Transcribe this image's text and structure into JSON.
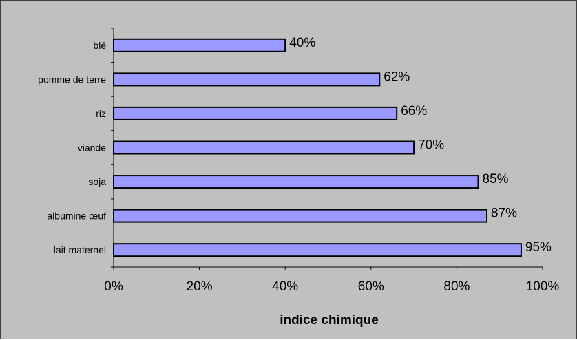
{
  "chart_data": {
    "type": "bar",
    "orientation": "horizontal",
    "categories": [
      "blé",
      "pomme de terre",
      "riz",
      "viande",
      "soja",
      "albumine œuf",
      "lait maternel"
    ],
    "values": [
      40,
      62,
      66,
      70,
      85,
      87,
      95
    ],
    "data_labels": [
      "40%",
      "62%",
      "66%",
      "70%",
      "85%",
      "87%",
      "95%"
    ],
    "title": "",
    "xlabel": "indice chimique",
    "ylabel": "",
    "xlim": [
      0,
      100
    ],
    "x_ticks": [
      0,
      20,
      40,
      60,
      80,
      100
    ],
    "x_tick_labels": [
      "0%",
      "20%",
      "40%",
      "60%",
      "80%",
      "100%"
    ],
    "grid": false,
    "legend": "none",
    "colors": {
      "bar_fill": "#9999ff",
      "bar_stroke": "#000000",
      "background": "#c0c0c0"
    }
  }
}
